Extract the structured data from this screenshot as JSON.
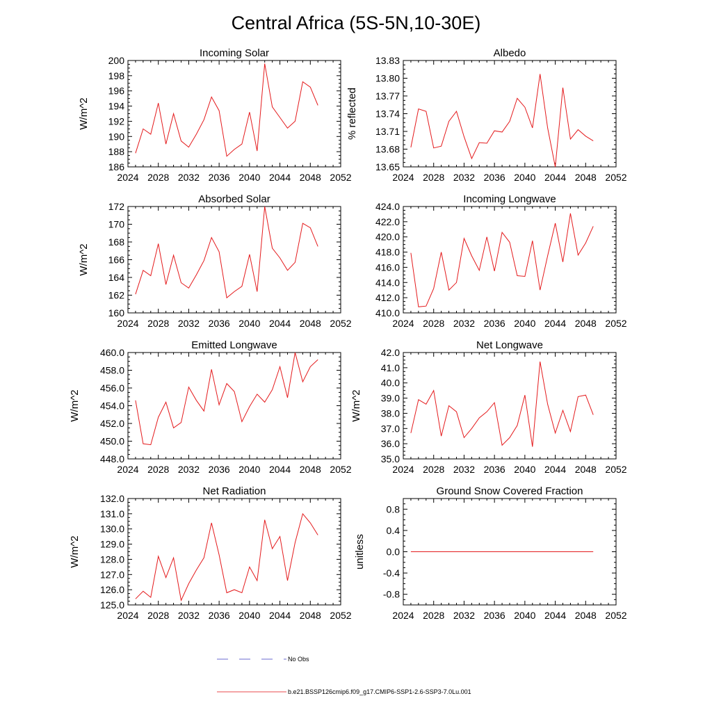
{
  "figure": {
    "title": "Central Africa (5S-5N,10-30E)"
  },
  "legend": {
    "entries": [
      {
        "label": "No Obs",
        "color": "#6b6bd1",
        "style": "dashed"
      },
      {
        "label": "b.e21.BSSP126cmip6.f09_g17.CMIP6-SSP1-2.6-SSP3-7.0Lu.001",
        "color": "#e8484d",
        "style": "solid"
      }
    ]
  },
  "chart_data": [
    {
      "type": "line",
      "title": "Incoming Solar",
      "ylabel": "W/m^2",
      "xlim": [
        2024,
        2052
      ],
      "ylim": [
        186,
        200
      ],
      "xticks": [
        "2024",
        "2028",
        "2032",
        "2036",
        "2040",
        "2044",
        "2048",
        "2052"
      ],
      "yticks": [
        "186",
        "188",
        "190",
        "192",
        "194",
        "196",
        "198",
        "200"
      ],
      "series": [
        {
          "color": "#e41a1c",
          "x": [
            2025,
            2026,
            2027,
            2028,
            2029,
            2030,
            2031,
            2032,
            2033,
            2034,
            2035,
            2036,
            2037,
            2038,
            2039,
            2040,
            2041,
            2042,
            2043,
            2044,
            2045,
            2046,
            2047,
            2048,
            2049
          ],
          "y": [
            187.8,
            191.0,
            190.3,
            194.4,
            189.0,
            193.0,
            189.4,
            188.6,
            190.3,
            192.2,
            195.2,
            193.4,
            187.4,
            188.3,
            189.0,
            193.2,
            188.1,
            199.6,
            193.9,
            192.5,
            191.1,
            192.0,
            197.2,
            196.5,
            194.1
          ]
        }
      ]
    },
    {
      "type": "line",
      "title": "Albedo",
      "ylabel": "% reflected",
      "xlim": [
        2024,
        2052
      ],
      "ylim": [
        13.65,
        13.83
      ],
      "xticks": [
        "2024",
        "2028",
        "2032",
        "2036",
        "2040",
        "2044",
        "2048",
        "2052"
      ],
      "yticks": [
        "13.65",
        "13.68",
        "13.71",
        "13.74",
        "13.77",
        "13.80",
        "13.83"
      ],
      "series": [
        {
          "color": "#e41a1c",
          "x": [
            2025,
            2026,
            2027,
            2028,
            2029,
            2030,
            2031,
            2032,
            2033,
            2034,
            2035,
            2036,
            2037,
            2038,
            2039,
            2040,
            2041,
            2042,
            2043,
            2044,
            2045,
            2046,
            2047,
            2048,
            2049
          ],
          "y": [
            13.683,
            13.748,
            13.744,
            13.682,
            13.685,
            13.727,
            13.744,
            13.701,
            13.664,
            13.691,
            13.69,
            13.711,
            13.709,
            13.727,
            13.766,
            13.751,
            13.716,
            13.807,
            13.716,
            13.65,
            13.784,
            13.697,
            13.713,
            13.702,
            13.694
          ]
        }
      ]
    },
    {
      "type": "line",
      "title": "Absorbed Solar",
      "ylabel": "W/m^2",
      "xlim": [
        2024,
        2052
      ],
      "ylim": [
        160,
        172
      ],
      "xticks": [
        "2024",
        "2028",
        "2032",
        "2036",
        "2040",
        "2044",
        "2048",
        "2052"
      ],
      "yticks": [
        "160",
        "162",
        "164",
        "166",
        "168",
        "170",
        "172"
      ],
      "series": [
        {
          "color": "#e41a1c",
          "x": [
            2025,
            2026,
            2027,
            2028,
            2029,
            2030,
            2031,
            2032,
            2033,
            2034,
            2035,
            2036,
            2037,
            2038,
            2039,
            2040,
            2041,
            2042,
            2043,
            2044,
            2045,
            2046,
            2047,
            2048,
            2049
          ],
          "y": [
            162.1,
            164.8,
            164.2,
            167.8,
            163.2,
            166.5,
            163.4,
            162.8,
            164.3,
            165.9,
            168.5,
            166.9,
            161.7,
            162.4,
            163.0,
            166.6,
            162.4,
            172.0,
            167.3,
            166.2,
            164.8,
            165.7,
            170.1,
            169.6,
            167.5
          ]
        }
      ]
    },
    {
      "type": "line",
      "title": "Incoming Longwave",
      "ylabel": "",
      "xlim": [
        2024,
        2052
      ],
      "ylim": [
        410,
        424
      ],
      "xticks": [
        "2024",
        "2028",
        "2032",
        "2036",
        "2040",
        "2044",
        "2048",
        "2052"
      ],
      "yticks": [
        "410.0",
        "412.0",
        "414.0",
        "416.0",
        "418.0",
        "420.0",
        "422.0",
        "424.0"
      ],
      "series": [
        {
          "color": "#e41a1c",
          "x": [
            2025,
            2026,
            2027,
            2028,
            2029,
            2030,
            2031,
            2032,
            2033,
            2034,
            2035,
            2036,
            2037,
            2038,
            2039,
            2040,
            2041,
            2042,
            2043,
            2044,
            2045,
            2046,
            2047,
            2048,
            2049
          ],
          "y": [
            417.9,
            410.8,
            410.9,
            413.2,
            418.0,
            413.0,
            414.0,
            419.8,
            417.5,
            415.6,
            420.0,
            415.5,
            420.6,
            419.3,
            414.9,
            414.8,
            419.5,
            413.0,
            417.5,
            421.8,
            416.7,
            423.1,
            417.6,
            419.2,
            421.4
          ]
        }
      ]
    },
    {
      "type": "line",
      "title": "Emitted Longwave",
      "ylabel": "W/m^2",
      "xlim": [
        2024,
        2052
      ],
      "ylim": [
        448,
        460
      ],
      "xticks": [
        "2024",
        "2028",
        "2032",
        "2036",
        "2040",
        "2044",
        "2048",
        "2052"
      ],
      "yticks": [
        "448.0",
        "450.0",
        "452.0",
        "454.0",
        "456.0",
        "458.0",
        "460.0"
      ],
      "series": [
        {
          "color": "#e41a1c",
          "x": [
            2025,
            2026,
            2027,
            2028,
            2029,
            2030,
            2031,
            2032,
            2033,
            2034,
            2035,
            2036,
            2037,
            2038,
            2039,
            2040,
            2041,
            2042,
            2043,
            2044,
            2045,
            2046,
            2047,
            2048,
            2049
          ],
          "y": [
            454.6,
            449.7,
            449.6,
            452.7,
            454.4,
            451.5,
            452.1,
            456.1,
            454.6,
            453.4,
            458.1,
            454.1,
            456.5,
            455.6,
            452.2,
            453.9,
            455.3,
            454.4,
            455.8,
            458.4,
            454.9,
            460.0,
            456.7,
            458.4,
            459.2
          ]
        }
      ]
    },
    {
      "type": "line",
      "title": "Net Longwave",
      "ylabel": "W/m^2",
      "xlim": [
        2024,
        2052
      ],
      "ylim": [
        35,
        42
      ],
      "xticks": [
        "2024",
        "2028",
        "2032",
        "2036",
        "2040",
        "2044",
        "2048",
        "2052"
      ],
      "yticks": [
        "35.0",
        "36.0",
        "37.0",
        "38.0",
        "39.0",
        "40.0",
        "41.0",
        "42.0"
      ],
      "series": [
        {
          "color": "#e41a1c",
          "x": [
            2025,
            2026,
            2027,
            2028,
            2029,
            2030,
            2031,
            2032,
            2033,
            2034,
            2035,
            2036,
            2037,
            2038,
            2039,
            2040,
            2041,
            2042,
            2043,
            2044,
            2045,
            2046,
            2047,
            2048,
            2049
          ],
          "y": [
            36.7,
            38.9,
            38.6,
            39.5,
            36.5,
            38.5,
            38.1,
            36.4,
            37.0,
            37.7,
            38.1,
            38.7,
            35.9,
            36.4,
            37.2,
            39.2,
            35.8,
            41.4,
            38.6,
            36.7,
            38.2,
            36.8,
            39.1,
            39.2,
            37.9
          ]
        }
      ]
    },
    {
      "type": "line",
      "title": "Net Radiation",
      "ylabel": "W/m^2",
      "xlim": [
        2024,
        2052
      ],
      "ylim": [
        125,
        132
      ],
      "xticks": [
        "2024",
        "2028",
        "2032",
        "2036",
        "2040",
        "2044",
        "2048",
        "2052"
      ],
      "yticks": [
        "125.0",
        "126.0",
        "127.0",
        "128.0",
        "129.0",
        "130.0",
        "131.0",
        "132.0"
      ],
      "series": [
        {
          "color": "#e41a1c",
          "x": [
            2025,
            2026,
            2027,
            2028,
            2029,
            2030,
            2031,
            2032,
            2033,
            2034,
            2035,
            2036,
            2037,
            2038,
            2039,
            2040,
            2041,
            2042,
            2043,
            2044,
            2045,
            2046,
            2047,
            2048,
            2049
          ],
          "y": [
            125.4,
            125.9,
            125.5,
            128.2,
            126.8,
            128.1,
            125.3,
            126.4,
            127.3,
            128.1,
            130.4,
            128.3,
            125.8,
            126.0,
            125.8,
            127.5,
            126.6,
            130.6,
            128.7,
            129.5,
            126.6,
            129.1,
            131.0,
            130.4,
            129.6
          ]
        }
      ]
    },
    {
      "type": "line",
      "title": "Ground Snow Covered Fraction",
      "ylabel": "unitless",
      "xlim": [
        2024,
        2052
      ],
      "ylim": [
        -1.0,
        1.0
      ],
      "xticks": [
        "2024",
        "2028",
        "2032",
        "2036",
        "2040",
        "2044",
        "2048",
        "2052"
      ],
      "yticks": [
        "-0.8",
        "-0.4",
        "0.0",
        "0.4",
        "0.8"
      ],
      "ytick_values": [
        -0.8,
        -0.4,
        0.0,
        0.4,
        0.8
      ],
      "series": [
        {
          "color": "#e41a1c",
          "x": [
            2025,
            2049
          ],
          "y": [
            0.0,
            0.0
          ]
        }
      ]
    }
  ]
}
